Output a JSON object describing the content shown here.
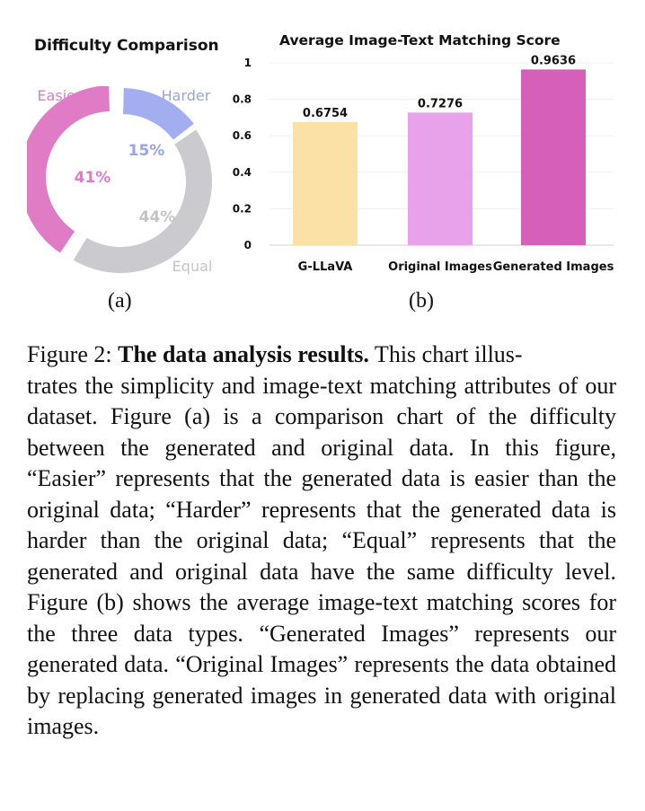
{
  "panel_a": {
    "title": "Difficulty Comparison",
    "sublabel": "(a)"
  },
  "panel_b": {
    "title": "Average Image-Text Matching Score",
    "sublabel": "(b)"
  },
  "chart_data": [
    {
      "type": "pie",
      "title": "Difficulty Comparison",
      "categories": [
        "Easier",
        "Harder",
        "Equal"
      ],
      "values": [
        41,
        15,
        44
      ],
      "value_labels": [
        "41%",
        "15%",
        "44%"
      ],
      "colors": [
        "#e07cc5",
        "#a3aef0",
        "#cbcbcf"
      ],
      "label_colors": [
        "#e07cc5",
        "#98a4ea",
        "#c4c4c8"
      ],
      "style": "donut"
    },
    {
      "type": "bar",
      "title": "Average Image-Text Matching Score",
      "categories": [
        "G-LLaVA",
        "Original Images",
        "Generated Images"
      ],
      "values": [
        0.6754,
        0.7276,
        0.9636
      ],
      "value_labels": [
        "0.6754",
        "0.7276",
        "0.9636"
      ],
      "colors": [
        "#fbe1a6",
        "#e8a2ea",
        "#d65fba"
      ],
      "ylim": [
        0,
        1
      ],
      "yticks": [
        0,
        0.2,
        0.4,
        0.6,
        0.8,
        1
      ],
      "ytick_labels": [
        "0",
        "0.2",
        "0.4",
        "0.6",
        "0.8",
        "1"
      ],
      "grid": true,
      "xlabel": "",
      "ylabel": ""
    }
  ],
  "caption": {
    "prefix": "Figure 2: ",
    "bold": "The data analysis results.",
    "pre_hyphen": " This chart illus",
    "post_hyphen": "trates the simplicity and image-text matching attributes of our dataset. Figure (a) is a comparison chart of the difficulty between the generated and original data. In this figure, “Easier” represents that the generated data is easier than the original data; “Harder” represents that the generated data is harder than the original data; “Equal” represents that the generated and original data have the same difficulty level. Figure (b) shows the average image-text matching scores for the three data types. “Generated Images” represents our generated data. “Original Images” represents the data obtained by replacing generated images in generated data with original images."
  }
}
